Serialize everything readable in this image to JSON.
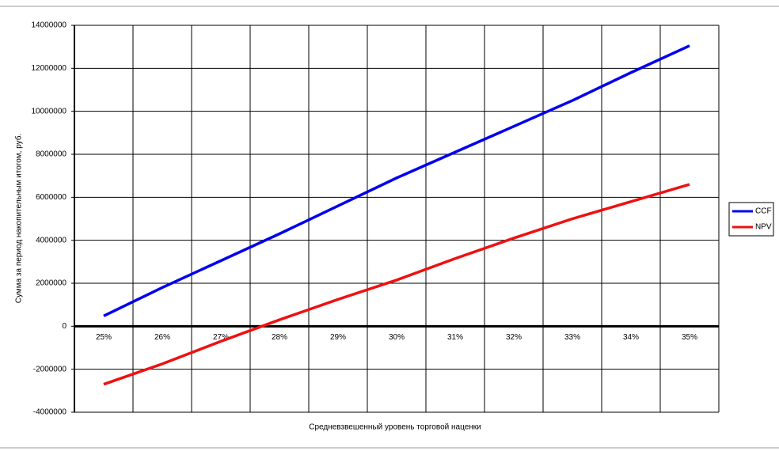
{
  "chart_data": {
    "type": "line",
    "x_label": "Средневзвешенный уровень торговой наценки",
    "y_label": "Сумма за период накопительным итогом, руб.",
    "categories": [
      "25%",
      "26%",
      "27%",
      "28%",
      "29%",
      "30%",
      "31%",
      "32%",
      "33%",
      "34%",
      "35%"
    ],
    "series": [
      {
        "name": "CCF",
        "color": "#0000ee",
        "values": [
          480000,
          1800000,
          3050000,
          4300000,
          5600000,
          6900000,
          8100000,
          9300000,
          10500000,
          11800000,
          13050000
        ]
      },
      {
        "name": "NPV",
        "color": "#ee1111",
        "values": [
          -2700000,
          -1750000,
          -700000,
          300000,
          1250000,
          2150000,
          3150000,
          4100000,
          5000000,
          5800000,
          6600000
        ]
      }
    ],
    "ylim": [
      -4000000,
      14000000
    ],
    "yticks": [
      -4000000,
      -2000000,
      0,
      2000000,
      4000000,
      6000000,
      8000000,
      10000000,
      12000000,
      14000000
    ],
    "grid": true,
    "legend": "right"
  }
}
